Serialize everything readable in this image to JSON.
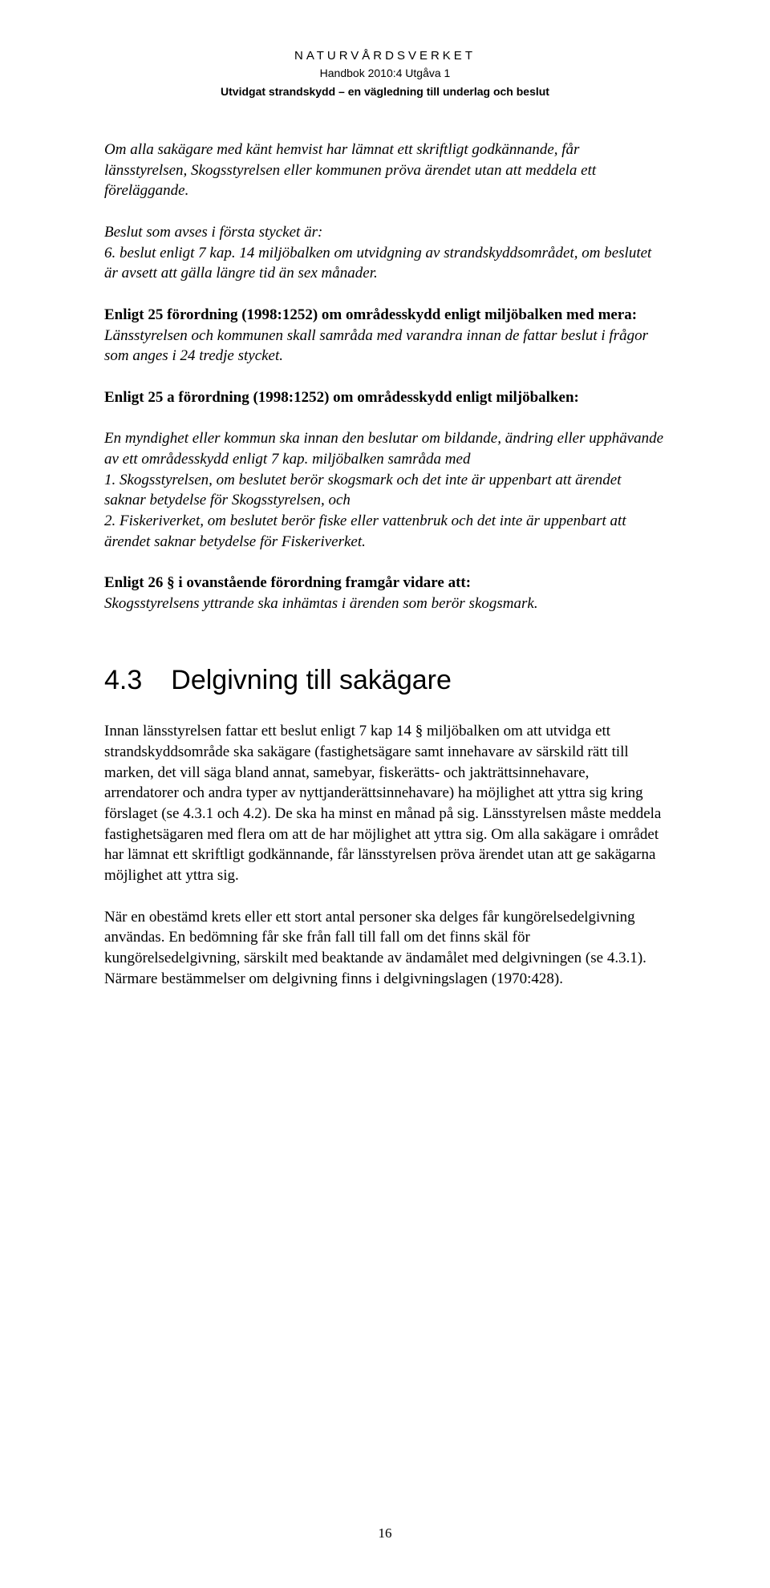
{
  "header": {
    "agency": "NATURVÅRDSVERKET",
    "handbook": "Handbok 2010:4 Utgåva 1",
    "subtitle": "Utvidgat strandskydd – en vägledning till underlag och beslut"
  },
  "body": {
    "p1": "Om alla sakägare med känt hemvist har lämnat ett skriftligt godkännande, får länsstyrelsen, Skogsstyrelsen eller kommunen pröva ärendet utan att meddela ett föreläggande.",
    "p2a": "Beslut som avses i första stycket är:",
    "p2b": "6. beslut enligt 7 kap. 14 miljöbalken om utvidgning av strandskyddsområdet, om beslutet är avsett att gälla längre tid än sex månader.",
    "p3_title": "Enligt 25 förordning (1998:1252) om områdesskydd enligt miljöbalken med mera:",
    "p3_body": "Länsstyrelsen och kommunen skall samråda med varandra innan de fattar beslut i frågor som anges i 24 tredje stycket.",
    "p4_title": "Enligt 25 a förordning (1998:1252) om områdesskydd enligt miljöbalken:",
    "p5": "En myndighet eller kommun ska innan den beslutar om bildande, ändring eller upphävande av ett områdesskydd enligt 7 kap. miljöbalken samråda med",
    "p5_1": "1. Skogsstyrelsen, om beslutet berör skogsmark och det inte är uppenbart att ärendet saknar betydelse för Skogsstyrelsen, och",
    "p5_2": "2. Fiskeriverket, om beslutet berör fiske eller vattenbruk och det inte är uppenbart att ärendet saknar betydelse för Fiskeriverket.",
    "p6_title": "Enligt 26 § i ovanstående  förordning framgår vidare att:",
    "p6_body": "Skogsstyrelsens yttrande ska inhämtas i ärenden som berör skogsmark.",
    "section_num": "4.3",
    "section_title": "Delgivning till sakägare",
    "p7": "Innan länsstyrelsen fattar ett beslut enligt 7 kap 14 § miljöbalken om att utvidga ett strandskyddsområde ska sakägare (fastighetsägare samt innehavare av särskild rätt till marken, det vill säga bland annat, samebyar, fiskerätts- och jakträttsinnehavare, arrendatorer och andra typer av nyttjanderättsinnehavare) ha möjlighet att yttra sig kring förslaget (se 4.3.1 och 4.2). De ska ha minst en månad på sig. Länsstyrelsen måste meddela fastighetsägaren med flera om att de har möjlighet att yttra sig. Om alla sakägare i området har lämnat ett skriftligt godkännande, får länsstyrelsen pröva ärendet utan att ge sakägarna möjlighet att yttra sig.",
    "p8": "När en obestämd krets eller ett stort antal personer ska delges får kungörelsedelgivning användas. En bedömning får ske från fall till fall om det finns skäl för kungörelsedelgivning, särskilt med beaktande av ändamålet med delgivningen (se 4.3.1). Närmare bestämmelser om delgivning finns i delgivningslagen (1970:428)."
  },
  "page_number": "16"
}
